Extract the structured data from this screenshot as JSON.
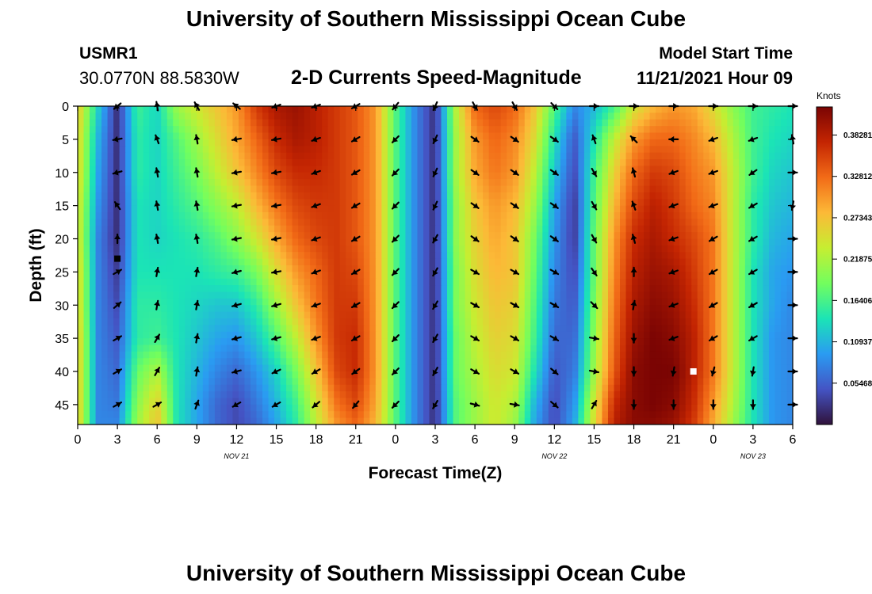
{
  "header": {
    "title": "University of Southern Mississippi Ocean Cube",
    "station": "USMR1",
    "coords": "30.0770N  88.5830W",
    "subtitle": "2-D Currents Speed-Magnitude",
    "model_start_label": "Model Start Time",
    "model_start_value": "11/21/2021 Hour 09"
  },
  "footer": {
    "title": "University of Southern Mississippi Ocean Cube"
  },
  "chart_data": {
    "type": "heatmap",
    "title": "2-D Currents Speed-Magnitude",
    "xlabel": "Forecast Time(Z)",
    "ylabel": "Depth (ft)",
    "x_ticks": [
      "0",
      "3",
      "6",
      "9",
      "12",
      "15",
      "18",
      "21",
      "0",
      "3",
      "6",
      "9",
      "12",
      "15",
      "18",
      "21",
      "0",
      "3",
      "6"
    ],
    "x_hours_range": [
      0,
      54
    ],
    "date_labels": [
      {
        "label": "NOV 21",
        "hour": 12
      },
      {
        "label": "NOV 22",
        "hour": 36
      },
      {
        "label": "NOV 23",
        "hour": 51
      }
    ],
    "y_ticks": [
      0,
      5,
      10,
      15,
      20,
      25,
      30,
      35,
      40,
      45
    ],
    "ylim": [
      0,
      48
    ],
    "colorbar": {
      "label": "Knots",
      "ticks": [
        "0.38281",
        "0.32812",
        "0.27343",
        "0.21875",
        "0.16406",
        "0.10937",
        "0.05468"
      ],
      "range": [
        0,
        0.42
      ],
      "colors": [
        "#30123b",
        "#4454c4",
        "#2a9bf2",
        "#1be4b6",
        "#72fe5e",
        "#c6ee31",
        "#fcb937",
        "#f26b17",
        "#c42502",
        "#7a0403"
      ]
    },
    "speed_field": {
      "hours": [
        0,
        1.5,
        3,
        4.5,
        6,
        7.5,
        9,
        10.5,
        12,
        13.5,
        15,
        16.5,
        18,
        19.5,
        21,
        22.5,
        24,
        25.5,
        27,
        28.5,
        30,
        31.5,
        33,
        34.5,
        36,
        37.5,
        39,
        40.5,
        42,
        43.5,
        45,
        46.5,
        48,
        49.5,
        51,
        52.5,
        54
      ],
      "depths": [
        0,
        5,
        10,
        15,
        20,
        25,
        30,
        35,
        40,
        45,
        48
      ],
      "speeds": [
        [
          0.27,
          0.13,
          0.02,
          0.16,
          0.13,
          0.21,
          0.24,
          0.27,
          0.3,
          0.36,
          0.39,
          0.4,
          0.38,
          0.36,
          0.34,
          0.3,
          0.17,
          0.08,
          0.02,
          0.22,
          0.33,
          0.35,
          0.33,
          0.27,
          0.17,
          0.08,
          0.11,
          0.16,
          0.24,
          0.28,
          0.3,
          0.29,
          0.25,
          0.2,
          0.16,
          0.15,
          0.14
        ],
        [
          0.26,
          0.11,
          0.02,
          0.15,
          0.13,
          0.17,
          0.21,
          0.25,
          0.29,
          0.33,
          0.37,
          0.39,
          0.38,
          0.36,
          0.34,
          0.3,
          0.17,
          0.08,
          0.02,
          0.21,
          0.3,
          0.33,
          0.31,
          0.25,
          0.14,
          0.05,
          0.14,
          0.23,
          0.3,
          0.33,
          0.33,
          0.31,
          0.28,
          0.22,
          0.16,
          0.14,
          0.13
        ],
        [
          0.26,
          0.1,
          0.02,
          0.15,
          0.13,
          0.16,
          0.19,
          0.23,
          0.27,
          0.31,
          0.35,
          0.37,
          0.37,
          0.36,
          0.34,
          0.3,
          0.17,
          0.08,
          0.02,
          0.21,
          0.29,
          0.32,
          0.3,
          0.23,
          0.12,
          0.04,
          0.16,
          0.26,
          0.33,
          0.36,
          0.35,
          0.32,
          0.3,
          0.23,
          0.16,
          0.13,
          0.12
        ],
        [
          0.25,
          0.09,
          0.02,
          0.14,
          0.13,
          0.15,
          0.17,
          0.2,
          0.23,
          0.28,
          0.32,
          0.35,
          0.36,
          0.36,
          0.34,
          0.3,
          0.17,
          0.08,
          0.02,
          0.2,
          0.27,
          0.3,
          0.28,
          0.21,
          0.1,
          0.03,
          0.17,
          0.28,
          0.35,
          0.38,
          0.36,
          0.33,
          0.31,
          0.23,
          0.15,
          0.12,
          0.11
        ],
        [
          0.25,
          0.08,
          0.02,
          0.14,
          0.13,
          0.14,
          0.15,
          0.17,
          0.2,
          0.24,
          0.29,
          0.33,
          0.35,
          0.36,
          0.34,
          0.3,
          0.17,
          0.08,
          0.02,
          0.2,
          0.26,
          0.29,
          0.27,
          0.19,
          0.09,
          0.03,
          0.18,
          0.3,
          0.37,
          0.39,
          0.37,
          0.35,
          0.32,
          0.23,
          0.15,
          0.11,
          0.1
        ],
        [
          0.26,
          0.08,
          0.03,
          0.14,
          0.14,
          0.14,
          0.14,
          0.15,
          0.16,
          0.19,
          0.25,
          0.3,
          0.33,
          0.36,
          0.35,
          0.3,
          0.17,
          0.08,
          0.02,
          0.19,
          0.25,
          0.28,
          0.27,
          0.18,
          0.08,
          0.04,
          0.18,
          0.31,
          0.38,
          0.4,
          0.39,
          0.36,
          0.32,
          0.23,
          0.14,
          0.1,
          0.09
        ],
        [
          0.26,
          0.08,
          0.04,
          0.15,
          0.15,
          0.14,
          0.13,
          0.12,
          0.12,
          0.15,
          0.21,
          0.27,
          0.32,
          0.36,
          0.36,
          0.3,
          0.17,
          0.08,
          0.02,
          0.19,
          0.24,
          0.27,
          0.26,
          0.17,
          0.07,
          0.05,
          0.19,
          0.32,
          0.39,
          0.41,
          0.4,
          0.37,
          0.32,
          0.23,
          0.14,
          0.1,
          0.08
        ],
        [
          0.27,
          0.08,
          0.05,
          0.15,
          0.16,
          0.14,
          0.12,
          0.1,
          0.09,
          0.12,
          0.17,
          0.23,
          0.3,
          0.36,
          0.37,
          0.3,
          0.17,
          0.08,
          0.02,
          0.18,
          0.23,
          0.26,
          0.25,
          0.16,
          0.06,
          0.06,
          0.2,
          0.33,
          0.4,
          0.42,
          0.41,
          0.38,
          0.32,
          0.23,
          0.14,
          0.09,
          0.08
        ],
        [
          0.27,
          0.08,
          0.06,
          0.18,
          0.22,
          0.14,
          0.11,
          0.08,
          0.06,
          0.09,
          0.13,
          0.19,
          0.27,
          0.35,
          0.37,
          0.3,
          0.17,
          0.08,
          0.02,
          0.18,
          0.22,
          0.25,
          0.24,
          0.14,
          0.05,
          0.07,
          0.21,
          0.34,
          0.41,
          0.42,
          0.42,
          0.38,
          0.32,
          0.23,
          0.14,
          0.09,
          0.08
        ],
        [
          0.27,
          0.08,
          0.07,
          0.2,
          0.26,
          0.14,
          0.1,
          0.06,
          0.04,
          0.07,
          0.11,
          0.16,
          0.24,
          0.32,
          0.35,
          0.29,
          0.17,
          0.08,
          0.02,
          0.17,
          0.21,
          0.24,
          0.22,
          0.11,
          0.04,
          0.09,
          0.24,
          0.37,
          0.41,
          0.42,
          0.41,
          0.37,
          0.3,
          0.22,
          0.14,
          0.09,
          0.08
        ],
        [
          0.27,
          0.08,
          0.08,
          0.21,
          0.27,
          0.14,
          0.1,
          0.06,
          0.04,
          0.06,
          0.1,
          0.15,
          0.23,
          0.3,
          0.33,
          0.28,
          0.17,
          0.08,
          0.02,
          0.17,
          0.21,
          0.24,
          0.21,
          0.1,
          0.04,
          0.1,
          0.25,
          0.38,
          0.41,
          0.41,
          0.4,
          0.36,
          0.29,
          0.21,
          0.14,
          0.09,
          0.08
        ]
      ]
    },
    "vectors": {
      "hours": [
        3,
        6,
        9,
        12,
        15,
        18,
        21,
        24,
        27,
        30,
        33,
        36,
        39,
        42,
        45,
        48,
        51,
        54
      ],
      "depths": [
        0,
        5,
        10,
        15,
        20,
        25,
        30,
        35,
        40,
        45
      ],
      "angles_deg": [
        [
          220,
          100,
          120,
          140,
          200,
          200,
          210,
          230,
          245,
          300,
          300,
          315,
          0,
          0,
          0,
          0,
          0,
          0
        ],
        [
          190,
          110,
          100,
          190,
          190,
          200,
          210,
          225,
          245,
          325,
          325,
          325,
          110,
          135,
          180,
          200,
          200,
          100
        ],
        [
          195,
          100,
          100,
          190,
          190,
          200,
          210,
          225,
          245,
          325,
          325,
          325,
          300,
          105,
          200,
          200,
          215,
          0
        ],
        [
          125,
          100,
          100,
          190,
          190,
          200,
          210,
          225,
          245,
          325,
          325,
          325,
          300,
          110,
          200,
          200,
          210,
          260
        ],
        [
          90,
          100,
          100,
          190,
          190,
          200,
          210,
          225,
          240,
          325,
          325,
          325,
          300,
          105,
          200,
          210,
          210,
          0
        ],
        [
          30,
          80,
          80,
          195,
          190,
          200,
          210,
          225,
          240,
          330,
          330,
          330,
          305,
          90,
          200,
          210,
          210,
          0
        ],
        [
          40,
          80,
          80,
          195,
          195,
          200,
          210,
          225,
          240,
          330,
          330,
          330,
          315,
          80,
          200,
          210,
          210,
          0
        ],
        [
          30,
          60,
          80,
          195,
          195,
          200,
          210,
          225,
          240,
          330,
          330,
          330,
          350,
          270,
          200,
          210,
          210,
          0
        ],
        [
          30,
          60,
          80,
          195,
          205,
          210,
          215,
          225,
          240,
          330,
          330,
          320,
          350,
          270,
          260,
          255,
          260,
          0
        ],
        [
          30,
          30,
          70,
          210,
          210,
          220,
          230,
          225,
          240,
          345,
          350,
          320,
          60,
          270,
          270,
          270,
          270,
          0
        ]
      ]
    },
    "markers": [
      {
        "hour": 3,
        "depth": 23,
        "color": "#000000"
      },
      {
        "hour": 46.5,
        "depth": 40,
        "color": "#ffffff"
      }
    ]
  }
}
